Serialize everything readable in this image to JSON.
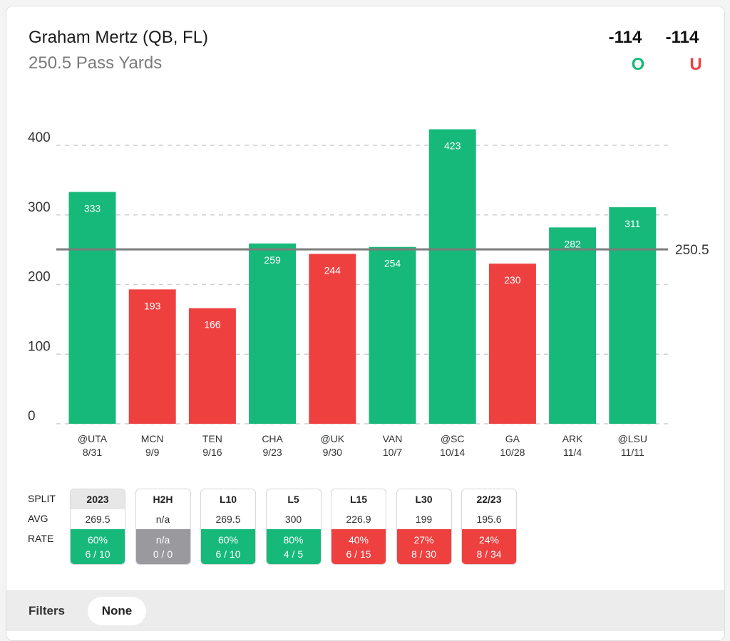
{
  "header": {
    "player": "Graham Mertz (QB, FL)",
    "prop": "250.5 Pass Yards",
    "over_odds": "-114",
    "under_odds": "-114",
    "over_label": "O",
    "under_label": "U"
  },
  "colors": {
    "over": "#16b97a",
    "under": "#ef4040",
    "push": "#9a9a9e",
    "line": "#7c7c7c"
  },
  "chart_data": {
    "type": "bar",
    "categories": [
      "@UTA",
      "MCN",
      "TEN",
      "CHA",
      "@UK",
      "VAN",
      "@SC",
      "GA",
      "ARK",
      "@LSU"
    ],
    "dates": [
      "8/31",
      "9/9",
      "9/16",
      "9/23",
      "9/30",
      "10/7",
      "10/14",
      "10/28",
      "11/4",
      "11/11"
    ],
    "values": [
      333,
      193,
      166,
      259,
      244,
      254,
      423,
      230,
      282,
      311
    ],
    "results": [
      "over",
      "under",
      "under",
      "over",
      "under",
      "over",
      "over",
      "under",
      "over",
      "over"
    ],
    "y_ticks": [
      0,
      100,
      200,
      300,
      400
    ],
    "ylim": [
      0,
      440
    ],
    "line": 250.5,
    "line_label": "250.5",
    "grid": true
  },
  "splits": {
    "labels": {
      "split": "SPLIT",
      "avg": "AVG",
      "rate": "RATE"
    },
    "items": [
      {
        "name": "2023",
        "avg": "269.5",
        "pct": "60%",
        "record": "6 / 10",
        "status": "green",
        "active": true
      },
      {
        "name": "H2H",
        "avg": "n/a",
        "pct": "n/a",
        "record": "0 / 0",
        "status": "gray",
        "active": false
      },
      {
        "name": "L10",
        "avg": "269.5",
        "pct": "60%",
        "record": "6 / 10",
        "status": "green",
        "active": false
      },
      {
        "name": "L5",
        "avg": "300",
        "pct": "80%",
        "record": "4 / 5",
        "status": "green",
        "active": false
      },
      {
        "name": "L15",
        "avg": "226.9",
        "pct": "40%",
        "record": "6 / 15",
        "status": "red",
        "active": false
      },
      {
        "name": "L30",
        "avg": "199",
        "pct": "27%",
        "record": "8 / 30",
        "status": "red",
        "active": false
      },
      {
        "name": "22/23",
        "avg": "195.6",
        "pct": "24%",
        "record": "8 / 34",
        "status": "red",
        "active": false
      }
    ]
  },
  "filters": {
    "label": "Filters",
    "value": "None"
  }
}
